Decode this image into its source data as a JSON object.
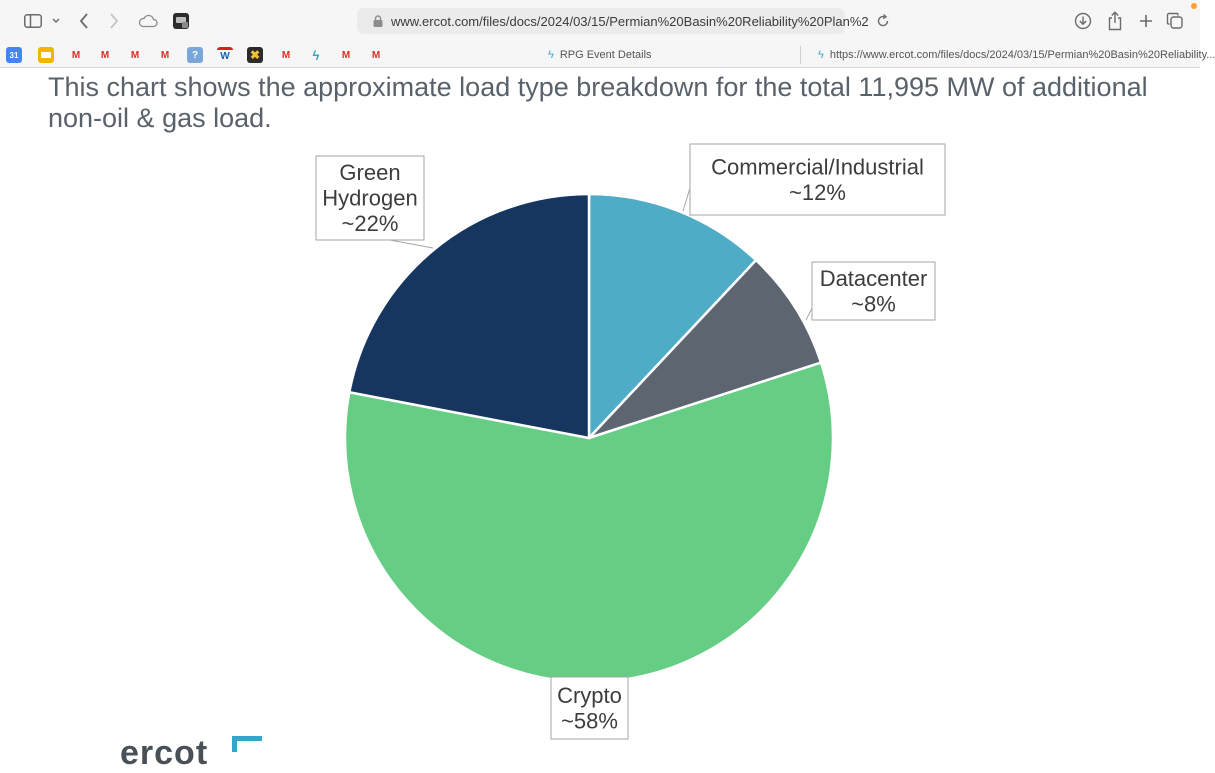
{
  "browser": {
    "address_url": "www.ercot.com/files/docs/2024/03/15/Permian%20Basin%20Reliability%20Plan%2",
    "tabs": [
      {
        "label": "RPG Event Details"
      },
      {
        "label": "https://www.ercot.com/files/docs/2024/03/15/Permian%20Basin%20Reliability..."
      }
    ],
    "favorites": [
      {
        "icon": "calendar-icon",
        "text": "31"
      },
      {
        "icon": "folder-icon",
        "text": ""
      },
      {
        "icon": "gmail-icon",
        "text": "M"
      },
      {
        "icon": "gmail-icon",
        "text": "M"
      },
      {
        "icon": "gmail-icon",
        "text": "M"
      },
      {
        "icon": "gmail-icon",
        "text": "M"
      },
      {
        "icon": "help-icon",
        "text": "?"
      },
      {
        "icon": "wordle-icon",
        "text": "W"
      },
      {
        "icon": "game-icon",
        "text": ""
      },
      {
        "icon": "gmail-icon",
        "text": "M"
      },
      {
        "icon": "bolt-icon",
        "text": ""
      },
      {
        "icon": "gmail-icon",
        "text": "M"
      },
      {
        "icon": "gmail-icon",
        "text": "M"
      }
    ]
  },
  "slide": {
    "title": "This chart shows the approximate load type breakdown for the total 11,995 MW of additional non-oil & gas load.",
    "logo_text": "ercot"
  },
  "chart_data": {
    "type": "pie",
    "start_angle_deg": 0,
    "direction": "clockwise",
    "slices": [
      {
        "label_lines": [
          "Commercial/Industrial",
          "~12%"
        ],
        "label": "Commercial/Industrial",
        "value": 12,
        "color": "#4facc6"
      },
      {
        "label_lines": [
          "Datacenter",
          "~8%"
        ],
        "label": "Datacenter",
        "value": 8,
        "color": "#5d6670"
      },
      {
        "label_lines": [
          "Crypto",
          "~58%"
        ],
        "label": "Crypto",
        "value": 58,
        "color": "#66cd85"
      },
      {
        "label_lines": [
          "Green",
          "Hydrogen",
          "~22%"
        ],
        "label": "Green Hydrogen",
        "value": 22,
        "color": "#163660"
      }
    ]
  }
}
